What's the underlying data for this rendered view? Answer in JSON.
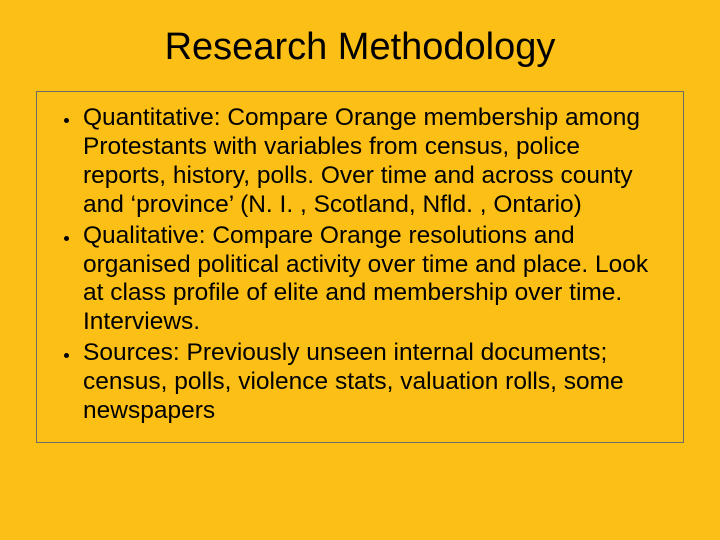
{
  "slide": {
    "background_color": "#fbbf15",
    "title": "Research Methodology",
    "title_fontsize": 38,
    "title_color": "#000000",
    "content_border_color": "#6b6b6b",
    "bullet_fontsize": 24.5,
    "bullet_color": "#000000",
    "bullets": [
      "Quantitative: Compare Orange membership among Protestants with variables from census, police reports, history, polls. Over time and across county and ‘province’ (N. I. , Scotland, Nfld. , Ontario)",
      "Qualitative: Compare Orange resolutions and organised political activity over time and place. Look at class profile of elite and membership over time. Interviews.",
      "Sources: Previously unseen internal documents; census, polls, violence stats, valuation rolls, some newspapers"
    ]
  }
}
